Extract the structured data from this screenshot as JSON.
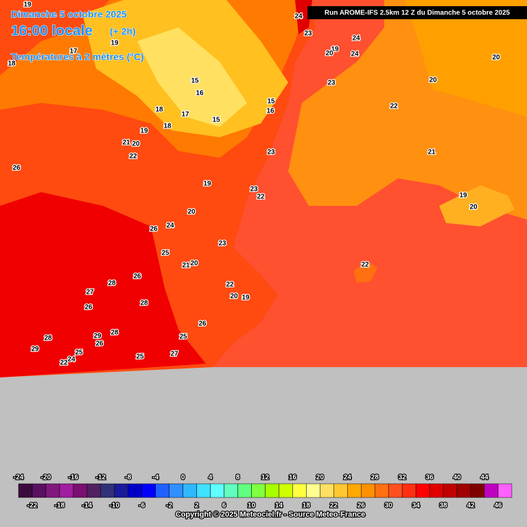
{
  "header": {
    "date": "Dimanche 5 octobre 2025",
    "time": "16:00 locale",
    "offset": "(+ 2h)",
    "parameter": "Températures à 2 mètres (°C)"
  },
  "run_info": "Run AROME-IFS 2.5km 12 Z du Dimanche 5 octobre 2025",
  "map_labels": [
    19,
    24,
    23,
    24,
    19,
    20,
    24,
    20,
    23,
    20,
    22,
    15,
    16,
    15,
    16,
    18,
    17,
    15,
    18,
    19,
    21,
    20,
    22,
    26,
    23,
    21,
    19,
    23,
    22,
    19,
    20,
    20,
    26,
    24,
    23,
    25,
    21,
    20,
    26,
    22,
    28,
    27,
    28,
    22,
    20,
    19,
    26,
    26,
    28,
    29,
    26,
    28,
    25,
    29,
    25,
    25,
    27,
    24,
    22,
    18,
    17,
    19
  ],
  "legend": {
    "values": [
      -24,
      -22,
      -20,
      -18,
      -16,
      -14,
      -12,
      -10,
      -8,
      -6,
      -4,
      -2,
      0,
      2,
      4,
      6,
      8,
      10,
      12,
      14,
      16,
      18,
      20,
      22,
      24,
      26,
      28,
      30,
      32,
      34,
      36,
      38,
      40,
      42,
      44,
      46
    ],
    "colors": [
      "#3c0a3c",
      "#5a1060",
      "#80187e",
      "#a01ea0",
      "#7a1070",
      "#502060",
      "#303078",
      "#1a1a9a",
      "#0000c8",
      "#0000ff",
      "#2060ff",
      "#3090ff",
      "#30b8ff",
      "#40e0ff",
      "#60ffff",
      "#60ffc0",
      "#60ff80",
      "#80ff40",
      "#a8ff00",
      "#d0ff00",
      "#ffff40",
      "#ffff90",
      "#ffe060",
      "#ffc830",
      "#ffa800",
      "#ff9000",
      "#ff7010",
      "#ff5020",
      "#ff3010",
      "#ff0000",
      "#e00000",
      "#c00000",
      "#a00000",
      "#800000",
      "#c000c0",
      "#ff60ff"
    ]
  },
  "copyright": "Copyright © 2025 Meteociel.fr - Source Meteo-France"
}
